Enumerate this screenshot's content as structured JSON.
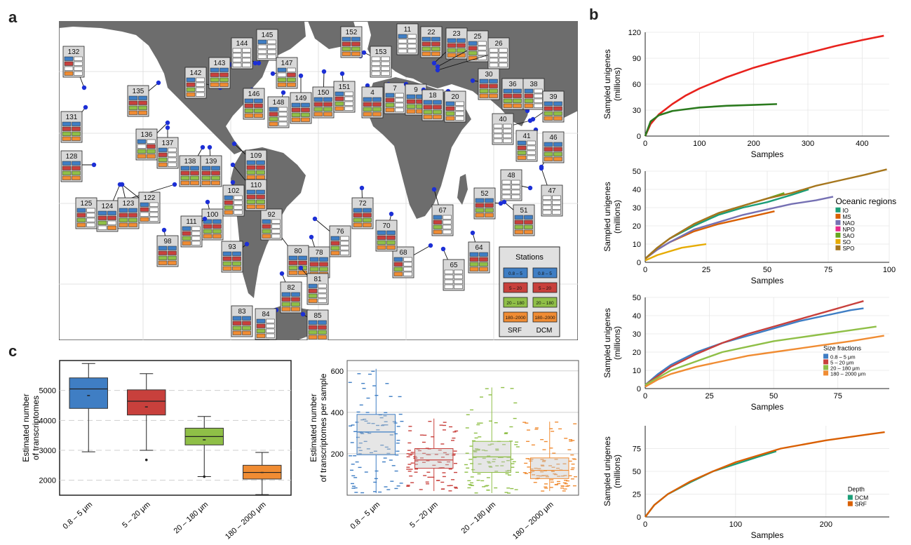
{
  "panels": {
    "a": "a",
    "b": "b",
    "c": "c"
  },
  "map": {
    "legend": {
      "title": "Stations",
      "fractions": [
        "0.8 – 5",
        "5 – 20",
        "20 – 180",
        "180–2000"
      ],
      "fraction_colors": [
        "#3f7ec4",
        "#c8403c",
        "#8fbf47",
        "#f08c33"
      ],
      "columns": [
        "SRF",
        "DCM"
      ]
    },
    "stations": [
      "132",
      "131",
      "128",
      "125",
      "124",
      "123",
      "122",
      "135",
      "136",
      "137",
      "138",
      "139",
      "142",
      "143",
      "144",
      "145",
      "146",
      "147",
      "148",
      "149",
      "150",
      "151",
      "152",
      "153",
      "11",
      "22",
      "23",
      "25",
      "26",
      "4",
      "7",
      "9",
      "18",
      "20",
      "30",
      "36",
      "38",
      "39",
      "40",
      "41",
      "46",
      "47",
      "48",
      "52",
      "51",
      "67",
      "64",
      "65",
      "68",
      "70",
      "72",
      "76",
      "78",
      "80",
      "81",
      "82",
      "83",
      "84",
      "85",
      "93",
      "92",
      "98",
      "100",
      "102",
      "109",
      "110",
      "111"
    ]
  },
  "chart_data": [
    {
      "type": "line",
      "xlabel": "Samples",
      "ylabel": "Sampled unigenes\n(millions)",
      "xlim": [
        0,
        450
      ],
      "ylim": [
        0,
        120
      ],
      "xticks": [
        0,
        100,
        200,
        300,
        400
      ],
      "yticks": [
        0,
        30,
        60,
        90,
        120
      ],
      "series": [
        {
          "color": "#e8221d",
          "x": [
            0,
            10,
            25,
            50,
            75,
            100,
            150,
            200,
            250,
            300,
            350,
            400,
            440
          ],
          "values": [
            0,
            14,
            25,
            37,
            47,
            55,
            68,
            79,
            88,
            96,
            104,
            111,
            116
          ]
        },
        {
          "color": "#2b7a1e",
          "x": [
            0,
            10,
            25,
            50,
            75,
            100,
            150,
            200,
            243
          ],
          "values": [
            0,
            17,
            24,
            29,
            31,
            33,
            35,
            36,
            37
          ]
        }
      ]
    },
    {
      "type": "line",
      "xlabel": "Samples",
      "ylabel": "Sampled unigenes\n(millions)",
      "xlim": [
        0,
        100
      ],
      "ylim": [
        0,
        50
      ],
      "xticks": [
        0,
        25,
        50,
        75,
        100
      ],
      "yticks": [
        0,
        10,
        20,
        30,
        40,
        50
      ],
      "legend_title": "Oceanic regions",
      "series": [
        {
          "name": "IO",
          "color": "#1b9e77",
          "x": [
            0,
            5,
            10,
            20,
            30,
            40,
            50,
            60,
            67
          ],
          "values": [
            2,
            8,
            13,
            20,
            26,
            30,
            33,
            37,
            40
          ]
        },
        {
          "name": "MS",
          "color": "#d95f02",
          "x": [
            0,
            5,
            10,
            20,
            30,
            40,
            53
          ],
          "values": [
            2,
            7,
            11,
            17,
            21,
            24,
            28
          ]
        },
        {
          "name": "NAO",
          "color": "#7570b3",
          "x": [
            0,
            5,
            10,
            20,
            30,
            40,
            50,
            60,
            70,
            77
          ],
          "values": [
            2,
            7,
            11,
            18,
            22,
            26,
            29,
            32,
            34,
            36
          ]
        },
        {
          "name": "NPO",
          "color": "#e7298a",
          "x": [
            0,
            5,
            10,
            20,
            30,
            40,
            50,
            56
          ],
          "values": [
            2,
            8,
            13,
            21,
            27,
            31,
            35,
            37
          ]
        },
        {
          "name": "SAO",
          "color": "#66a61e",
          "x": [
            0,
            5,
            10,
            20,
            30,
            40,
            50,
            57
          ],
          "values": [
            2,
            8,
            13,
            21,
            27,
            31,
            35,
            38
          ]
        },
        {
          "name": "SO",
          "color": "#e6ab02",
          "x": [
            0,
            5,
            10,
            15,
            20,
            25
          ],
          "values": [
            1,
            4,
            6,
            8,
            9,
            10
          ]
        },
        {
          "name": "SPO",
          "color": "#a6761d",
          "x": [
            0,
            5,
            10,
            20,
            30,
            40,
            50,
            60,
            70,
            80,
            90,
            99
          ],
          "values": [
            2,
            8,
            13,
            21,
            27,
            31,
            35,
            38,
            42,
            45,
            48,
            51
          ]
        }
      ]
    },
    {
      "type": "line",
      "xlabel": "Samples",
      "ylabel": "Sampled unigenes\n(millions)",
      "xlim": [
        0,
        95
      ],
      "ylim": [
        0,
        50
      ],
      "xticks": [
        0,
        25,
        50,
        75
      ],
      "yticks": [
        0,
        10,
        20,
        30,
        40,
        50
      ],
      "legend_title": "Size fractions",
      "series": [
        {
          "name": "0.8 – 5 μm",
          "color": "#3f7ec4",
          "x": [
            0,
            5,
            10,
            20,
            30,
            40,
            50,
            60,
            70,
            80,
            85
          ],
          "values": [
            2,
            8,
            13,
            20,
            25,
            29,
            33,
            37,
            40,
            43,
            44
          ]
        },
        {
          "name": "5 – 20 μm",
          "color": "#c8403c",
          "x": [
            0,
            5,
            10,
            20,
            30,
            40,
            50,
            60,
            70,
            80,
            85
          ],
          "values": [
            2,
            7,
            12,
            19,
            25,
            30,
            34,
            38,
            42,
            46,
            48
          ]
        },
        {
          "name": "20 – 180 μm",
          "color": "#8fbf47",
          "x": [
            0,
            5,
            10,
            20,
            30,
            40,
            50,
            60,
            70,
            80,
            90
          ],
          "values": [
            2,
            6,
            10,
            15,
            20,
            23,
            26,
            28,
            30,
            32,
            34
          ]
        },
        {
          "name": "180 – 2000 μm",
          "color": "#f08c33",
          "x": [
            0,
            5,
            10,
            20,
            30,
            40,
            50,
            60,
            70,
            80,
            93
          ],
          "values": [
            1,
            5,
            8,
            12,
            15,
            18,
            20,
            22,
            24,
            26,
            29
          ]
        }
      ]
    },
    {
      "type": "line",
      "xlabel": "Samples",
      "ylabel": "Sampled unigenes\n(millions)",
      "xlim": [
        0,
        270
      ],
      "ylim": [
        0,
        100
      ],
      "xticks": [
        0,
        100,
        200
      ],
      "yticks": [
        0,
        25,
        50,
        75
      ],
      "legend_title": "Depth",
      "series": [
        {
          "name": "DCM",
          "color": "#1b9e77",
          "x": [
            0,
            10,
            25,
            50,
            75,
            100,
            125,
            145
          ],
          "values": [
            0,
            13,
            25,
            38,
            50,
            58,
            66,
            72
          ]
        },
        {
          "name": "SRF",
          "color": "#d95f02",
          "x": [
            0,
            10,
            25,
            50,
            75,
            100,
            150,
            200,
            250,
            265
          ],
          "values": [
            0,
            13,
            25,
            39,
            50,
            60,
            75,
            84,
            91,
            93
          ]
        }
      ]
    },
    {
      "type": "box",
      "ylabel": "Estimated number\nof transcriptomes",
      "ylim": [
        1500,
        6000
      ],
      "yticks": [
        2000,
        3000,
        4000,
        5000
      ],
      "categories": [
        "0.8 – 5 μm",
        "5 – 20 μm",
        "20 – 180 μm",
        "180 – 2000 μm"
      ],
      "colors": [
        "#3f7ec4",
        "#c8403c",
        "#8fbf47",
        "#f08c33"
      ],
      "boxes": [
        {
          "whisker_low": 2950,
          "q1": 4400,
          "median": 5050,
          "q3": 5420,
          "whisker_high": 5900,
          "mean": 4830,
          "outliers": []
        },
        {
          "whisker_low": 3000,
          "q1": 4180,
          "median": 4640,
          "q3": 5020,
          "whisker_high": 5560,
          "mean": 4450,
          "outliers": [
            2680
          ]
        },
        {
          "whisker_low": 2120,
          "q1": 3180,
          "median": 3460,
          "q3": 3740,
          "whisker_high": 4130,
          "mean": 3350,
          "outliers": [
            2120
          ]
        },
        {
          "whisker_low": 1520,
          "q1": 2040,
          "median": 2260,
          "q3": 2500,
          "whisker_high": 2930,
          "mean": 2260,
          "outliers": []
        }
      ]
    },
    {
      "type": "box",
      "ylabel": "Estimated number\nof transcriptomes per sample",
      "ylim": [
        0,
        650
      ],
      "yticks": [
        200,
        400,
        600
      ],
      "categories": [
        "0.8 – 5 μm",
        "5 – 20 μm",
        "20 – 180 μm",
        "180 – 2000 μm"
      ],
      "colors": [
        "#3f7ec4",
        "#c8403c",
        "#8fbf47",
        "#f08c33"
      ],
      "boxes": [
        {
          "whisker_low": 10,
          "q1": 195,
          "median": 305,
          "q3": 390,
          "whisker_high": 610,
          "n": 95
        },
        {
          "whisker_low": 20,
          "q1": 130,
          "median": 170,
          "q3": 225,
          "whisker_high": 370,
          "n": 90
        },
        {
          "whisker_low": 10,
          "q1": 110,
          "median": 185,
          "q3": 260,
          "whisker_high": 520,
          "n": 100
        },
        {
          "whisker_low": 20,
          "q1": 80,
          "median": 120,
          "q3": 180,
          "whisker_high": 355,
          "n": 100
        }
      ]
    }
  ]
}
